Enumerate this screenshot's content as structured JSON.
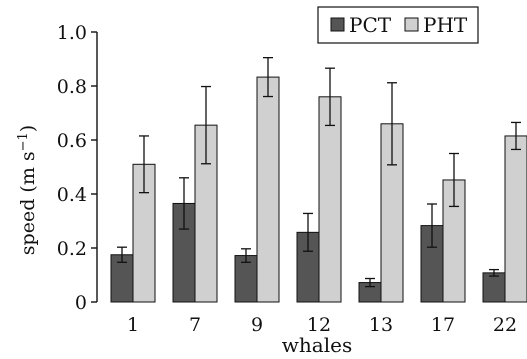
{
  "chart_data": {
    "type": "bar",
    "title": "",
    "xlabel": "whales",
    "ylabel": "speed (m s",
    "ylabel_exponent": "−1",
    "ylabel_close": ")",
    "categories": [
      "1",
      "7",
      "9",
      "12",
      "13",
      "17",
      "22"
    ],
    "ylim": [
      0,
      1.0
    ],
    "yticks": [
      "0",
      "0.2",
      "0.4",
      "0.6",
      "0.8",
      "1.0"
    ],
    "legend_position": "top-right",
    "grid": false,
    "series": [
      {
        "name": "PCT",
        "color": "#555555",
        "values": [
          0.175,
          0.365,
          0.172,
          0.258,
          0.072,
          0.283,
          0.108
        ],
        "errors": [
          0.028,
          0.095,
          0.025,
          0.07,
          0.015,
          0.08,
          0.012
        ]
      },
      {
        "name": "PHT",
        "color": "#d0d0d0",
        "values": [
          0.51,
          0.655,
          0.833,
          0.76,
          0.66,
          0.452,
          0.615
        ],
        "errors": [
          0.105,
          0.143,
          0.072,
          0.106,
          0.152,
          0.098,
          0.05
        ]
      }
    ]
  }
}
